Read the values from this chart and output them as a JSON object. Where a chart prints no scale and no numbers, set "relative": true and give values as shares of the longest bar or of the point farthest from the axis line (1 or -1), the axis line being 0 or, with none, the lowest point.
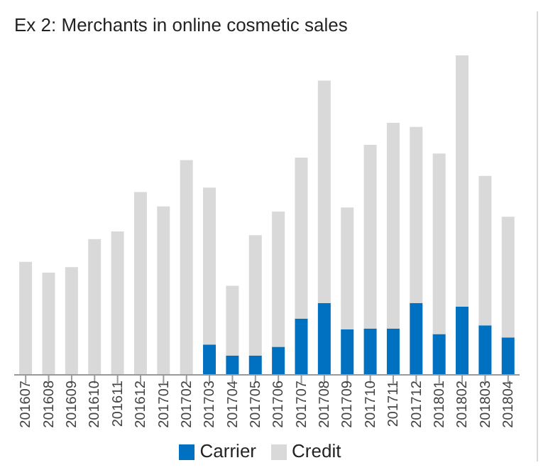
{
  "chart_data": {
    "type": "bar",
    "title": "Ex 2: Merchants in online cosmetic sales",
    "relative": true,
    "stacked": true,
    "legend": "bottom",
    "grid": false,
    "categories": [
      "201607",
      "201608",
      "201609",
      "201610",
      "201611",
      "201612",
      "201701",
      "201702",
      "201703",
      "201704",
      "201705",
      "201706",
      "201707",
      "201708",
      "201709",
      "201710",
      "201711",
      "201712",
      "201801",
      "201802",
      "201803",
      "201804"
    ],
    "series": [
      {
        "name": "Carrier",
        "color": "#0070c0",
        "values": [
          0,
          0,
          0,
          0,
          0,
          0,
          0,
          0,
          0.095,
          0.06,
          0.06,
          0.088,
          0.176,
          0.225,
          0.142,
          0.145,
          0.145,
          0.225,
          0.128,
          0.214,
          0.155,
          0.117
        ]
      },
      {
        "name": "Credit",
        "color": "#d9d9d9",
        "values": [
          0.354,
          0.32,
          0.337,
          0.425,
          0.449,
          0.572,
          0.527,
          0.672,
          0.491,
          0.219,
          0.377,
          0.423,
          0.504,
          0.696,
          0.382,
          0.575,
          0.644,
          0.551,
          0.565,
          0.786,
          0.468,
          0.378
        ]
      }
    ]
  }
}
